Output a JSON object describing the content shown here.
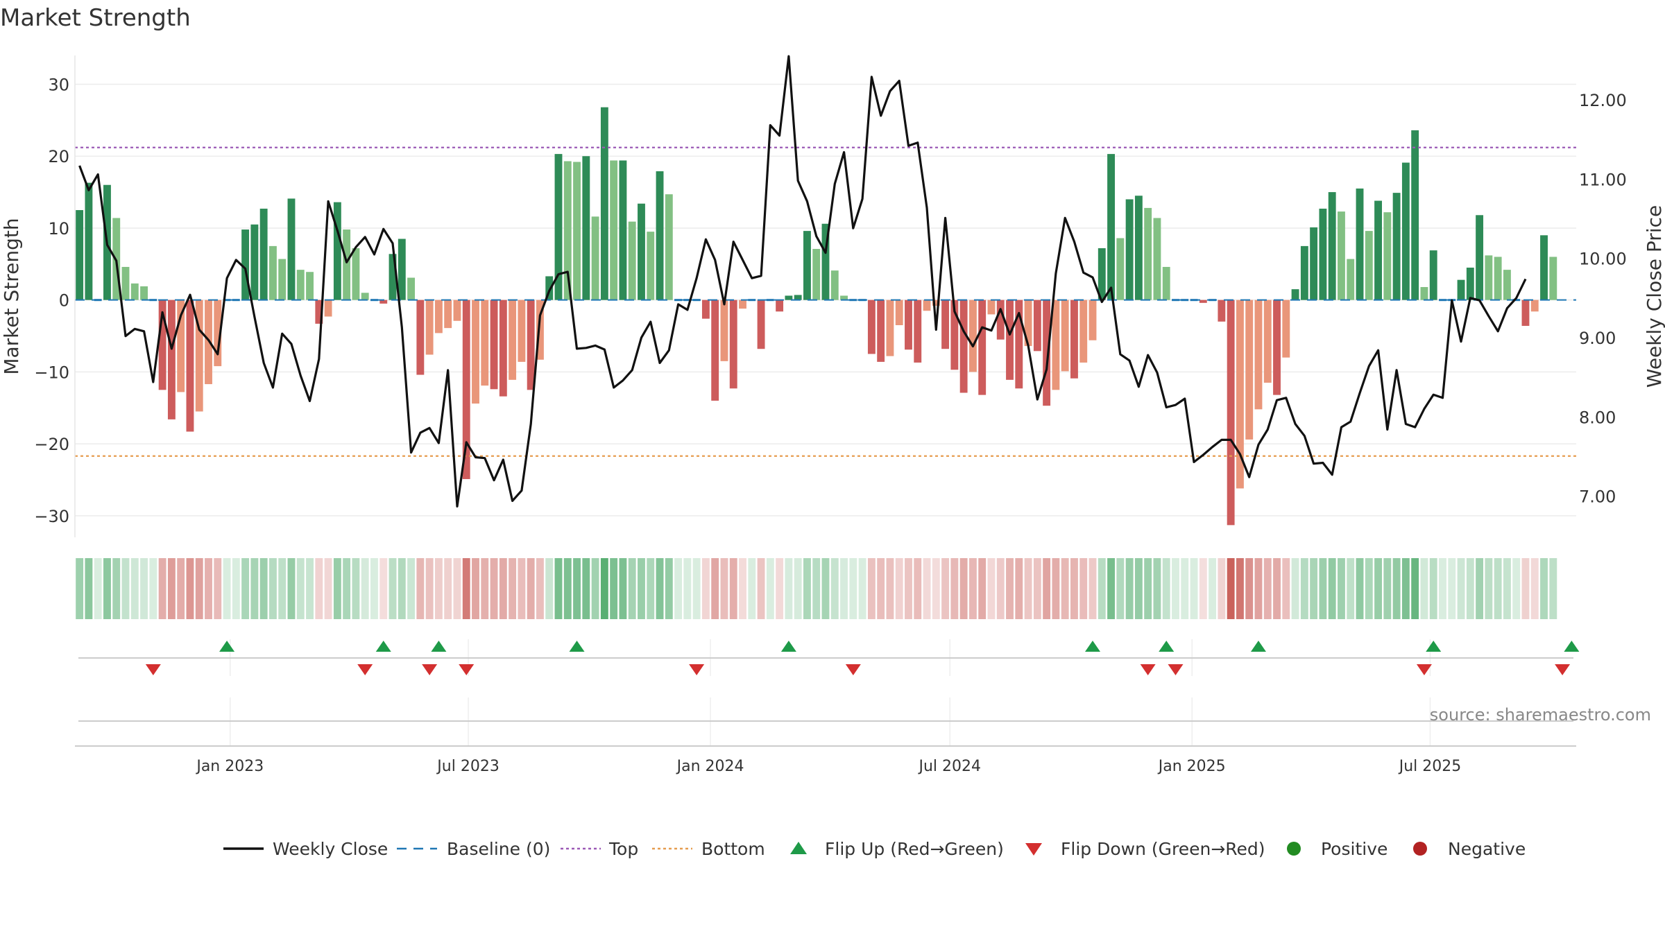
{
  "title": "Market Strength",
  "source": "source: sharemaestro.com",
  "colors": {
    "pos_strong": "#2e8b57",
    "pos_weak": "#82c083",
    "neg_strong": "#cd5c5c",
    "neg_weak": "#e9967a",
    "close": "#111111",
    "baseline": "#1f77b4",
    "top": "#9b59b6",
    "bottom": "#e69c4f",
    "flip_up": "#1e9a48",
    "flip_down": "#d32f2f",
    "positive": "#228b22",
    "negative": "#b22222"
  },
  "legend": [
    {
      "key": "close",
      "label": "Weekly Close"
    },
    {
      "key": "baseline",
      "label": "Baseline (0)"
    },
    {
      "key": "top",
      "label": "Top"
    },
    {
      "key": "bottom",
      "label": "Bottom"
    },
    {
      "key": "flip_up",
      "label": "Flip Up (Red→Green)"
    },
    {
      "key": "flip_down",
      "label": "Flip Down (Green→Red)"
    },
    {
      "key": "positive",
      "label": "Positive"
    },
    {
      "key": "negative",
      "label": "Negative"
    }
  ],
  "chart_data": {
    "type": "bar",
    "title": "Market Strength",
    "ylabel": "Market Strength",
    "y2label": "Weekly Close Price",
    "xlim": [
      "2022-09-05",
      "2025-10-20"
    ],
    "ylim": [
      -33,
      34
    ],
    "y2lim": [
      6.48,
      12.56
    ],
    "yticks": [
      -30,
      -20,
      -10,
      0,
      10,
      20,
      30
    ],
    "y2ticks": [
      7.0,
      8.0,
      9.0,
      10.0,
      11.0,
      12.0
    ],
    "y2tick_labels": [
      "7.00",
      "8.00",
      "9.00",
      "10.00",
      "11.00",
      "12.00"
    ],
    "xticks": [
      "2023-01-01",
      "2023-07-01",
      "2024-01-01",
      "2024-07-01",
      "2025-01-01",
      "2025-07-01"
    ],
    "xtick_labels": [
      "Jan 2023",
      "Jul 2023",
      "Jan 2024",
      "Jul 2024",
      "Jan 2025",
      "Jul 2025"
    ],
    "start_week": "2022-09-05",
    "top_level": 21.2,
    "bottom_level": -21.7,
    "baseline": 0,
    "strength": [
      12.5,
      16.3,
      0,
      16.0,
      11.4,
      4.6,
      2.3,
      1.9,
      0,
      -12.5,
      -16.6,
      -12.8,
      -18.3,
      -15.5,
      -11.7,
      -9.2,
      0,
      0,
      9.8,
      10.5,
      12.7,
      7.5,
      5.7,
      14.1,
      4.2,
      3.9,
      -3.3,
      -2.3,
      13.6,
      9.8,
      7.2,
      1.0,
      0,
      -0.5,
      6.4,
      8.5,
      3.1,
      -10.4,
      -7.6,
      -4.6,
      -3.9,
      -2.9,
      -24.9,
      -14.4,
      -11.9,
      -12.4,
      -13.4,
      -11.1,
      -8.6,
      -12.5,
      -8.3,
      3.3,
      20.3,
      19.3,
      19.2,
      20.0,
      11.6,
      26.8,
      19.4,
      19.4,
      10.9,
      13.4,
      9.5,
      17.9,
      14.7,
      0,
      0,
      0,
      -2.6,
      -14.0,
      -8.5,
      -12.3,
      -1.2,
      0,
      -6.8,
      0,
      -1.6,
      0.6,
      0.7,
      9.6,
      7.1,
      10.6,
      4.1,
      0.6,
      0,
      0,
      -7.5,
      -8.6,
      -7.8,
      -3.5,
      -6.9,
      -8.7,
      -1.5,
      -0.8,
      -6.8,
      -9.7,
      -12.9,
      -10.0,
      -13.2,
      -2.0,
      -5.5,
      -11.1,
      -12.3,
      -6.4,
      -7.1,
      -14.7,
      -12.5,
      -9.9,
      -10.9,
      -8.7,
      -5.6,
      7.2,
      20.3,
      8.6,
      14.0,
      14.5,
      12.8,
      11.4,
      4.6,
      0,
      0,
      0,
      -0.4,
      0,
      -3.0,
      -31.3,
      -26.2,
      -19.4,
      -15.2,
      -11.5,
      -13.2,
      -8.0,
      1.5,
      7.5,
      10.1,
      12.7,
      15.0,
      12.3,
      5.7,
      15.5,
      9.6,
      13.8,
      12.2,
      14.9,
      19.1,
      23.6,
      1.8,
      6.9,
      0,
      0,
      2.8,
      4.5,
      11.8,
      6.2,
      6.0,
      4.2,
      0,
      -3.6,
      -1.6,
      9.0,
      6.0
    ],
    "close": [
      11.17,
      10.86,
      11.06,
      10.17,
      9.97,
      9.02,
      9.11,
      9.08,
      8.44,
      9.32,
      8.86,
      9.28,
      9.54,
      9.1,
      8.97,
      8.79,
      9.75,
      9.98,
      9.87,
      9.26,
      8.68,
      8.37,
      9.05,
      8.92,
      8.52,
      8.2,
      8.73,
      10.72,
      10.35,
      9.95,
      10.14,
      10.27,
      10.05,
      10.37,
      10.19,
      9.13,
      7.55,
      7.8,
      7.86,
      7.67,
      8.59,
      6.87,
      7.68,
      7.49,
      7.48,
      7.2,
      7.46,
      6.94,
      7.07,
      7.91,
      9.28,
      9.59,
      9.8,
      9.83,
      8.86,
      8.87,
      8.9,
      8.85,
      8.37,
      8.46,
      8.59,
      9.0,
      9.2,
      8.68,
      8.84,
      9.42,
      9.35,
      9.75,
      10.24,
      9.98,
      9.42,
      10.21,
      9.98,
      9.75,
      9.78,
      11.68,
      11.55,
      12.55,
      10.98,
      10.72,
      10.28,
      10.07,
      10.94,
      11.34,
      10.38,
      10.75,
      12.29,
      11.8,
      12.11,
      12.24,
      11.42,
      11.46,
      10.64,
      9.1,
      10.51,
      9.33,
      9.08,
      8.89,
      9.13,
      9.09,
      9.36,
      9.04,
      9.31,
      8.9,
      8.22,
      8.6,
      9.81,
      10.51,
      10.21,
      9.82,
      9.76,
      9.45,
      9.63,
      8.79,
      8.71,
      8.38,
      8.78,
      8.56,
      8.12,
      8.15,
      8.23,
      7.43,
      7.52,
      7.62,
      7.71,
      7.71,
      7.53,
      7.24,
      7.65,
      7.84,
      8.21,
      8.24,
      7.91,
      7.76,
      7.41,
      7.42,
      7.27,
      7.87,
      7.94,
      8.3,
      8.64,
      8.84,
      7.84,
      8.59,
      7.91,
      7.87,
      8.1,
      8.28,
      8.24,
      9.47,
      8.95,
      9.5,
      9.47,
      9.27,
      9.08,
      9.37,
      9.5,
      9.74
    ],
    "flips_up": [
      "2022-12-26",
      "2023-04-24",
      "2023-06-05",
      "2023-09-18",
      "2024-02-26",
      "2024-10-14",
      "2024-12-09",
      "2025-02-17",
      "2025-06-30",
      "2025-10-13"
    ],
    "flips_down": [
      "2022-10-31",
      "2023-04-10",
      "2023-05-29",
      "2023-06-26",
      "2023-12-18",
      "2024-04-15",
      "2024-11-25",
      "2024-12-16",
      "2025-06-23",
      "2025-10-06"
    ]
  }
}
